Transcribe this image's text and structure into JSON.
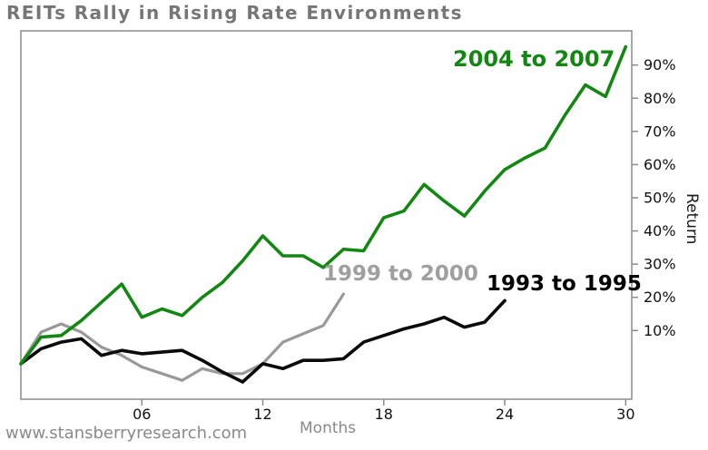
{
  "page": {
    "website": "www.stansberryresearch.com"
  },
  "labels": {
    "series_2004_2007": "2004 to 2007",
    "series_1999_2000": "1999 to 2000",
    "series_1993_1995": "1993 to 1995"
  },
  "colors": {
    "title_text": "#767676",
    "axis_border": "#8c8c8c",
    "tick_text": "#111111",
    "muted_text": "#8a8a8a",
    "green_series": "#128712",
    "gray_series": "#999999",
    "black_series": "#0a0a0a"
  },
  "chart_data": {
    "type": "line",
    "title": "REITs Rally in Rising Rate Environments",
    "xlabel": "Months",
    "ylabel": "Return",
    "xlim": [
      0,
      30.3
    ],
    "ylim": [
      -10.7,
      100.3
    ],
    "x_ticks": [
      6,
      12,
      18,
      24,
      30
    ],
    "x_tick_labels": [
      "06",
      "12",
      "18",
      "24",
      "30"
    ],
    "y_ticks": [
      10,
      20,
      30,
      40,
      50,
      60,
      70,
      80,
      90
    ],
    "y_tick_labels": [
      "10%",
      "20%",
      "30%",
      "40%",
      "50%",
      "60%",
      "70%",
      "80%",
      "90%"
    ],
    "grid": false,
    "legend_position": "inline labels beside lines",
    "series": [
      {
        "name": "2004 to 2007",
        "color": "#128712",
        "x_start_month": 0,
        "x_step_months": 1,
        "values_pct": [
          0,
          8,
          8.5,
          13,
          18.5,
          24,
          14,
          16.5,
          14.5,
          20,
          24.5,
          31,
          38.5,
          32.5,
          32.5,
          29,
          34.5,
          34,
          44,
          46,
          54,
          49,
          44.5,
          52,
          58.5,
          62,
          65,
          75,
          84,
          80.5,
          95.5
        ]
      },
      {
        "name": "1999 to 2000",
        "color": "#999999",
        "x_start_month": 0,
        "x_step_months": 1,
        "values_pct": [
          0,
          9.5,
          12,
          9.5,
          5,
          2.5,
          -1,
          -3,
          -5,
          -1.5,
          -3,
          -3,
          0,
          6.5,
          9,
          11.5,
          21
        ]
      },
      {
        "name": "1993 to 1995",
        "color": "#0a0a0a",
        "x_start_month": 0,
        "x_step_months": 1,
        "values_pct": [
          0,
          4.5,
          6.5,
          7.5,
          2.5,
          4,
          3,
          3.5,
          4,
          1,
          -2.5,
          -5.5,
          0,
          -1.5,
          1,
          1,
          1.5,
          6.5,
          8.5,
          10.5,
          12,
          14,
          11,
          12.5,
          19
        ]
      }
    ]
  }
}
